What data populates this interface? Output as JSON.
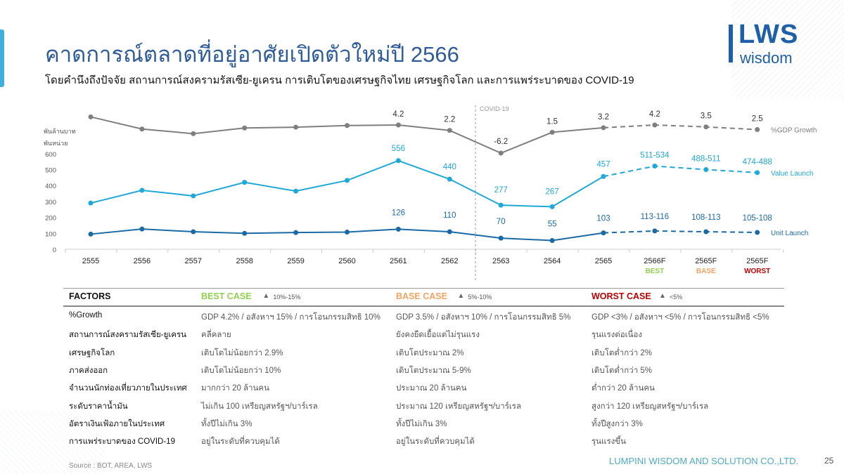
{
  "header": {
    "title": "คาดการณ์ตลาดที่อยู่อาศัยเปิดตัวใหม่ปี 2566",
    "subtitle": "โดยคำนึงถึงปัจจัย สถานการณ์สงครามรัสเซีย-ยูเครน การเติบโตของเศรษฐกิจไทย เศรษฐกิจโลก และการแพร่ระบาดของ COVID-19",
    "logo_text": "LWS",
    "logo_sub": "wisdom"
  },
  "chart_data": {
    "type": "line",
    "categories": [
      "2555",
      "2556",
      "2557",
      "2558",
      "2559",
      "2560",
      "2561",
      "2562",
      "2563",
      "2564",
      "2565",
      "2566F",
      "2565F",
      "2565F"
    ],
    "scenario_labels": [
      "",
      "",
      "",
      "",
      "",
      "",
      "",
      "",
      "",
      "",
      "",
      "BEST",
      "BASE",
      "WORST"
    ],
    "scenario_colors": {
      "BEST": "#92d050",
      "BASE": "#f4a460",
      "WORST": "#c00000"
    },
    "unit_labels": [
      "พันล้านบาท",
      "พันหน่วย"
    ],
    "ylim": [
      0,
      600
    ],
    "yticks": [
      "0",
      "100",
      "200",
      "300",
      "400",
      "500",
      "600"
    ],
    "annotation": "COVID-19",
    "forecast_start_index": 10,
    "series": [
      {
        "name": "%GDP Growth",
        "color": "#7f7f7f",
        "axis": "secondary",
        "values": [
          7.2,
          2.7,
          1.0,
          3.1,
          3.4,
          4.0,
          4.2,
          2.2,
          -6.2,
          1.5,
          3.2,
          4.2,
          3.5,
          2.5
        ],
        "labels": [
          null,
          null,
          null,
          null,
          null,
          null,
          "4.2",
          "2.2",
          "-6.2",
          "1.5",
          "3.2",
          "4.2",
          "3.5",
          "2.5"
        ]
      },
      {
        "name": "Value Launch",
        "color": "#1fa8d8",
        "axis": "primary",
        "values": [
          290,
          370,
          335,
          420,
          365,
          432,
          556,
          440,
          277,
          267,
          457,
          522,
          500,
          481
        ],
        "labels": [
          null,
          null,
          null,
          null,
          null,
          null,
          "556",
          "440",
          "277",
          "267",
          "457",
          "511-534",
          "488-511",
          "474-488"
        ]
      },
      {
        "name": "Unit Launch",
        "color": "#1a6aa6",
        "axis": "primary",
        "values": [
          95,
          127,
          110,
          100,
          105,
          108,
          126,
          110,
          70,
          55,
          103,
          115,
          110,
          106
        ],
        "labels": [
          null,
          null,
          null,
          null,
          null,
          null,
          "126",
          "110",
          "70",
          "55",
          "103",
          "113-116",
          "108-113",
          "105-108"
        ]
      }
    ]
  },
  "table": {
    "factors_label": "FACTORS",
    "cases": [
      {
        "label": "BEST CASE",
        "range": "10%-15%",
        "color": "#92d050"
      },
      {
        "label": "BASE CASE",
        "range": "5%-10%",
        "color": "#f4a460"
      },
      {
        "label": "WORST CASE",
        "range": "<5%",
        "color": "#c00000"
      }
    ],
    "rows": [
      {
        "factor": "%Growth",
        "best": "GDP 4.2% / อสังหาฯ 15% / การโอนกรรมสิทธิ 10%",
        "base": "GDP 3.5% / อสังหาฯ 10% / การโอนกรรมสิทธิ 5%",
        "worst": "GDP <3% / อสังหาฯ <5% / การโอนกรรมสิทธิ <5%"
      },
      {
        "factor": "สถานการณ์สงครามรัสเซีย-ยูเครน",
        "best": "คลี่คลาย",
        "base": "ยังคงยืดเยื้อแต่ไม่รุนแรง",
        "worst": "รุนแรงต่อเนื่อง"
      },
      {
        "factor": "เศรษฐกิจโลก",
        "best": "เติบโตไม่น้อยกว่า 2.9%",
        "base": "เติบโตประมาณ 2%",
        "worst": "เติบโตต่ำกว่า 2%"
      },
      {
        "factor": "ภาคส่งออก",
        "best": "เติบโตไม่น้อยกว่า 10%",
        "base": "เติบโตประมาณ 5-9%",
        "worst": "เติบโตต่ำกว่า 5%"
      },
      {
        "factor": "จำนวนนักท่องเที่ยวภายในประเทศ",
        "best": "มากกว่า 20 ล้านคน",
        "base": "ประมาณ 20 ล้านคน",
        "worst": "ต่ำกว่า  20 ล้านคน"
      },
      {
        "factor": "ระดับราคาน้ำมัน",
        "best": "ไม่เกิน 100 เหรียญสหรัฐฯ/บาร์เรล",
        "base": "ประมาณ 120 เหรียญสหรัฐฯ/บาร์เรล",
        "worst": "สูงกว่า 120 เหรียญสหรัฐฯ/บาร์เรล"
      },
      {
        "factor": "อัตราเงินเฟ้อภายในประเทศ",
        "best": "ทั้งปีไม่เกิน 3%",
        "base": "ทั้งปีไม่เกิน 3%",
        "worst": "ทั้งปีสูงกว่า 3%"
      },
      {
        "factor": "การแพร่ระบาดของ COVID-19",
        "best": "อยู่ในระดับที่ควบคุมได้",
        "base": "อยู่ในระดับที่ควบคุมได้",
        "worst": "รุนแรงขึ้น"
      }
    ]
  },
  "footer": {
    "source": "Source : BOT, AREA, LWS",
    "company": "LUMPINI WISDOM AND SOLUTION CO.,LTD.",
    "page_number": "25"
  }
}
